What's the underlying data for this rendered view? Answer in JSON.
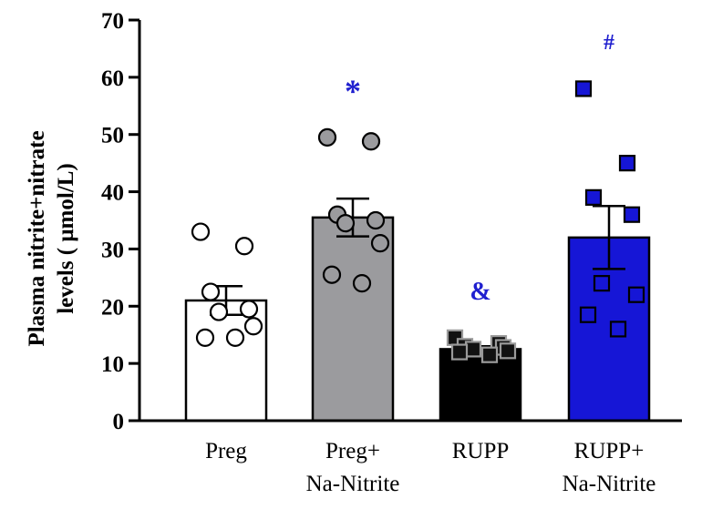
{
  "chart_data": {
    "type": "bar",
    "ylabel_lines": [
      "Plasma nitrite+nitrate",
      "levels ( μmol/L)"
    ],
    "ylim": [
      0,
      70
    ],
    "yticks": [
      0,
      10,
      20,
      30,
      40,
      50,
      60,
      70
    ],
    "categories": [
      {
        "lines": [
          "Preg"
        ],
        "mean": 21,
        "sem": 2.5,
        "bar_color": "#ffffff",
        "point_color": "#ffffff",
        "marker": "circle",
        "points": [
          33,
          30.5,
          22.5,
          19.5,
          19,
          16.5,
          14.5,
          14.5
        ],
        "annotation": ""
      },
      {
        "lines": [
          "Preg+",
          "Na-Nitrite"
        ],
        "mean": 35.5,
        "sem": 3.3,
        "bar_color": "#9b9b9e",
        "point_color": "#9b9b9e",
        "marker": "circle",
        "points": [
          49.5,
          48.8,
          36,
          35,
          34.5,
          31,
          25.5,
          24
        ],
        "annotation": "*"
      },
      {
        "lines": [
          "RUPP"
        ],
        "mean": 12.5,
        "sem": 0.5,
        "bar_color": "#000000",
        "point_color": "#111111",
        "marker": "square",
        "points": [
          14.5,
          13.5,
          13,
          12.8,
          12.5,
          12.2,
          12,
          11.5
        ],
        "annotation": "&"
      },
      {
        "lines": [
          "RUPP+",
          "Na-Nitrite"
        ],
        "mean": 32,
        "sem": 5.5,
        "bar_color": "#1616d6",
        "point_color": "#1616d6",
        "marker": "square",
        "points": [
          58,
          45,
          39,
          36,
          24,
          22,
          18.5,
          16
        ],
        "annotation": "#"
      }
    ],
    "open_squares": [
      24,
      22,
      18.5,
      16
    ]
  },
  "colors": {
    "axis": "#000000",
    "annotation": "#1f1fcf"
  }
}
